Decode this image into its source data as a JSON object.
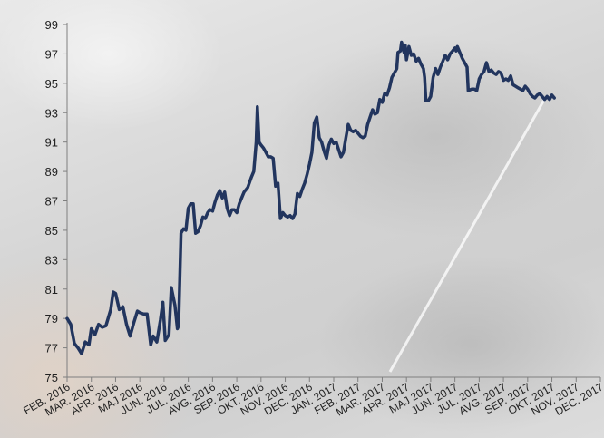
{
  "chart_data": {
    "type": "line",
    "title": "",
    "xlabel": "",
    "ylabel": "",
    "ylim": [
      75,
      99
    ],
    "yticks": [
      75,
      77,
      79,
      81,
      83,
      85,
      87,
      89,
      91,
      93,
      95,
      97,
      99
    ],
    "ytick_labels": [
      "75",
      "77",
      "79",
      "81",
      "83",
      "85",
      "87",
      "89",
      "91",
      "93",
      "95",
      "97",
      "99"
    ],
    "x_categories": [
      "FEB. 2016",
      "MAR. 2016",
      "APR. 2016",
      "MAJ 2016",
      "JUN. 2016",
      "JUL. 2016",
      "AVG. 2016",
      "SEP. 2016",
      "OKT. 2016",
      "NOV. 2016",
      "DEC. 2016",
      "JAN. 2017",
      "FEB. 2017",
      "MAR. 2017",
      "APR. 2017",
      "MAJ 2017",
      "JUN. 2017",
      "JUL. 2017",
      "AVG. 2017",
      "SEP. 2017",
      "OKT. 2017",
      "NOV. 2017",
      "DEC. 2017"
    ],
    "grid": false,
    "legend": "none",
    "line_color": "#22355e",
    "series": [
      {
        "values": [
          [
            0.0,
            79.0
          ],
          [
            0.15,
            78.6
          ],
          [
            0.3,
            77.3
          ],
          [
            0.45,
            77.0
          ],
          [
            0.6,
            76.6
          ],
          [
            0.75,
            77.4
          ],
          [
            0.9,
            77.2
          ],
          [
            1.0,
            78.3
          ],
          [
            1.15,
            77.9
          ],
          [
            1.3,
            78.6
          ],
          [
            1.45,
            78.4
          ],
          [
            1.6,
            78.5
          ],
          [
            1.8,
            79.6
          ],
          [
            1.9,
            80.8
          ],
          [
            2.0,
            80.7
          ],
          [
            2.15,
            79.6
          ],
          [
            2.3,
            79.8
          ],
          [
            2.45,
            78.6
          ],
          [
            2.6,
            77.8
          ],
          [
            2.75,
            78.7
          ],
          [
            2.9,
            79.5
          ],
          [
            3.0,
            79.4
          ],
          [
            3.15,
            79.3
          ],
          [
            3.3,
            79.3
          ],
          [
            3.45,
            77.2
          ],
          [
            3.55,
            77.8
          ],
          [
            3.7,
            77.4
          ],
          [
            3.85,
            78.9
          ],
          [
            3.95,
            80.1
          ],
          [
            4.05,
            77.5
          ],
          [
            4.2,
            77.9
          ],
          [
            4.3,
            81.1
          ],
          [
            4.45,
            79.9
          ],
          [
            4.55,
            78.3
          ],
          [
            4.6,
            78.5
          ],
          [
            4.7,
            84.8
          ],
          [
            4.8,
            85.1
          ],
          [
            4.9,
            85.0
          ],
          [
            5.0,
            86.5
          ],
          [
            5.1,
            86.8
          ],
          [
            5.2,
            86.8
          ],
          [
            5.3,
            84.8
          ],
          [
            5.4,
            84.9
          ],
          [
            5.5,
            85.3
          ],
          [
            5.6,
            85.9
          ],
          [
            5.7,
            85.8
          ],
          [
            5.8,
            86.2
          ],
          [
            5.9,
            86.4
          ],
          [
            6.0,
            86.3
          ],
          [
            6.1,
            86.9
          ],
          [
            6.2,
            87.4
          ],
          [
            6.3,
            87.7
          ],
          [
            6.4,
            87.2
          ],
          [
            6.5,
            87.6
          ],
          [
            6.6,
            86.5
          ],
          [
            6.7,
            86.0
          ],
          [
            6.8,
            86.4
          ],
          [
            6.9,
            86.4
          ],
          [
            7.0,
            86.2
          ],
          [
            7.1,
            86.8
          ],
          [
            7.2,
            87.2
          ],
          [
            7.3,
            87.6
          ],
          [
            7.45,
            87.9
          ],
          [
            7.6,
            88.6
          ],
          [
            7.7,
            89.0
          ],
          [
            7.8,
            91.0
          ],
          [
            7.85,
            93.4
          ],
          [
            7.92,
            91.0
          ],
          [
            8.0,
            90.8
          ],
          [
            8.1,
            90.6
          ],
          [
            8.2,
            90.3
          ],
          [
            8.3,
            90.0
          ],
          [
            8.4,
            90.0
          ],
          [
            8.5,
            89.9
          ],
          [
            8.6,
            88.0
          ],
          [
            8.7,
            88.2
          ],
          [
            8.8,
            85.8
          ],
          [
            8.9,
            86.2
          ],
          [
            9.0,
            86.0
          ],
          [
            9.1,
            85.9
          ],
          [
            9.2,
            86.0
          ],
          [
            9.3,
            85.8
          ],
          [
            9.4,
            86.1
          ],
          [
            9.5,
            87.5
          ],
          [
            9.6,
            87.3
          ],
          [
            9.7,
            87.8
          ],
          [
            9.8,
            88.2
          ],
          [
            9.9,
            88.8
          ],
          [
            10.0,
            89.5
          ],
          [
            10.1,
            90.3
          ],
          [
            10.2,
            92.3
          ],
          [
            10.3,
            92.7
          ],
          [
            10.4,
            91.3
          ],
          [
            10.5,
            91.0
          ],
          [
            10.6,
            90.4
          ],
          [
            10.7,
            89.9
          ],
          [
            10.8,
            90.8
          ],
          [
            10.9,
            91.2
          ],
          [
            11.0,
            90.9
          ],
          [
            11.1,
            91.0
          ],
          [
            11.2,
            90.5
          ],
          [
            11.3,
            90.0
          ],
          [
            11.4,
            90.3
          ],
          [
            11.5,
            91.3
          ],
          [
            11.6,
            92.2
          ],
          [
            11.7,
            91.8
          ],
          [
            11.8,
            91.7
          ],
          [
            11.9,
            91.8
          ],
          [
            12.0,
            91.6
          ],
          [
            12.1,
            91.4
          ],
          [
            12.2,
            91.3
          ],
          [
            12.3,
            91.4
          ],
          [
            12.4,
            92.2
          ],
          [
            12.5,
            92.7
          ],
          [
            12.6,
            93.2
          ],
          [
            12.7,
            92.9
          ],
          [
            12.8,
            93.0
          ],
          [
            12.9,
            93.9
          ],
          [
            13.0,
            93.7
          ],
          [
            13.1,
            94.3
          ],
          [
            13.2,
            94.2
          ],
          [
            13.3,
            94.7
          ],
          [
            13.4,
            95.4
          ],
          [
            13.5,
            95.7
          ],
          [
            13.6,
            96.0
          ],
          [
            13.65,
            97.1
          ],
          [
            13.75,
            97.2
          ],
          [
            13.8,
            97.8
          ],
          [
            13.9,
            97.1
          ],
          [
            13.95,
            97.6
          ],
          [
            14.0,
            96.6
          ],
          [
            14.1,
            97.5
          ],
          [
            14.2,
            96.9
          ],
          [
            14.3,
            97.0
          ],
          [
            14.4,
            96.5
          ],
          [
            14.5,
            96.7
          ],
          [
            14.6,
            96.3
          ],
          [
            14.7,
            96.0
          ],
          [
            14.75,
            95.4
          ],
          [
            14.8,
            93.8
          ],
          [
            14.9,
            93.8
          ],
          [
            15.0,
            94.1
          ],
          [
            15.1,
            95.4
          ],
          [
            15.2,
            96.0
          ],
          [
            15.3,
            95.6
          ],
          [
            15.4,
            96.1
          ],
          [
            15.5,
            96.5
          ],
          [
            15.6,
            96.9
          ],
          [
            15.7,
            96.6
          ],
          [
            15.8,
            97.0
          ],
          [
            15.9,
            97.2
          ],
          [
            16.0,
            97.4
          ],
          [
            16.05,
            97.2
          ],
          [
            16.1,
            97.5
          ],
          [
            16.2,
            97.1
          ],
          [
            16.3,
            96.7
          ],
          [
            16.4,
            96.4
          ],
          [
            16.5,
            96.1
          ],
          [
            16.55,
            94.5
          ],
          [
            16.7,
            94.6
          ],
          [
            16.8,
            94.6
          ],
          [
            16.9,
            94.5
          ],
          [
            17.0,
            95.3
          ],
          [
            17.1,
            95.6
          ],
          [
            17.2,
            95.8
          ],
          [
            17.3,
            96.4
          ],
          [
            17.4,
            95.8
          ],
          [
            17.5,
            95.9
          ],
          [
            17.6,
            95.7
          ],
          [
            17.7,
            95.6
          ],
          [
            17.8,
            95.8
          ],
          [
            17.9,
            95.7
          ],
          [
            18.0,
            95.2
          ],
          [
            18.1,
            95.3
          ],
          [
            18.2,
            95.2
          ],
          [
            18.3,
            95.5
          ],
          [
            18.4,
            94.9
          ],
          [
            18.5,
            94.8
          ],
          [
            18.6,
            94.7
          ],
          [
            18.7,
            94.6
          ],
          [
            18.8,
            94.5
          ],
          [
            18.9,
            94.8
          ],
          [
            19.0,
            94.6
          ],
          [
            19.1,
            94.3
          ],
          [
            19.2,
            94.1
          ],
          [
            19.3,
            94.0
          ],
          [
            19.4,
            94.2
          ],
          [
            19.5,
            94.3
          ],
          [
            19.6,
            94.1
          ],
          [
            19.7,
            93.9
          ],
          [
            19.8,
            94.1
          ],
          [
            19.9,
            93.9
          ],
          [
            20.0,
            94.2
          ],
          [
            20.1,
            94.0
          ]
        ]
      }
    ]
  }
}
